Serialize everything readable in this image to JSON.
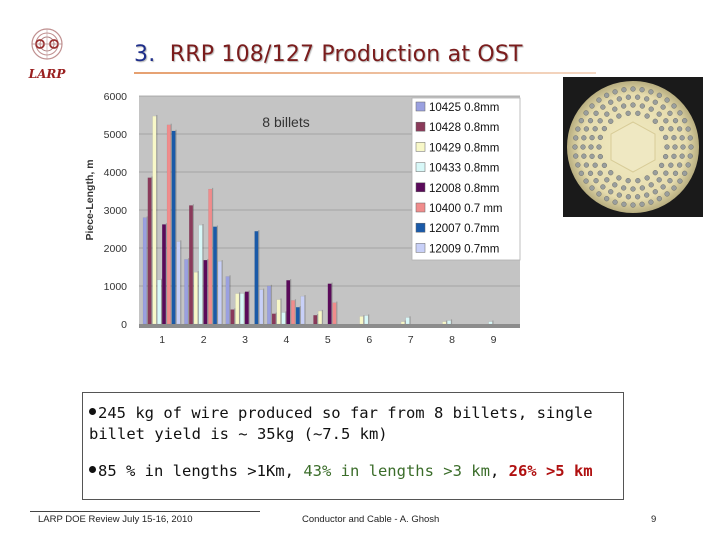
{
  "logo": {
    "text": "LARP"
  },
  "title": {
    "number": "3.",
    "text": "RRP 108/127 Production at OST"
  },
  "chart_data": {
    "type": "bar",
    "title": "",
    "annotation": "8 billets",
    "xlabel": "",
    "ylabel": "Piece-Length, m",
    "ylim": [
      0,
      6000
    ],
    "yticks": [
      0,
      1000,
      2000,
      3000,
      4000,
      5000,
      6000
    ],
    "categories": [
      "1",
      "2",
      "3",
      "4",
      "5",
      "6",
      "7",
      "8",
      "9"
    ],
    "series": [
      {
        "name": "10425 0.8mm",
        "color": "#9aa0e0",
        "values": [
          2800,
          1700,
          1250,
          1000,
          0,
          0,
          0,
          0,
          0
        ]
      },
      {
        "name": "10428 0.8mm",
        "color": "#8a3a5a",
        "values": [
          3850,
          3120,
          380,
          270,
          230,
          0,
          0,
          0,
          0
        ]
      },
      {
        "name": "10429 0.8mm",
        "color": "#f8f8c8",
        "values": [
          5470,
          1360,
          800,
          640,
          340,
          200,
          60,
          60,
          0
        ]
      },
      {
        "name": "10433 0.8mm",
        "color": "#d8f8f8",
        "values": [
          1160,
          2600,
          800,
          300,
          0,
          220,
          170,
          90,
          60
        ]
      },
      {
        "name": "12008 0.8mm",
        "color": "#5a0a5a",
        "values": [
          2620,
          1680,
          850,
          1150,
          1060,
          0,
          0,
          0,
          0
        ]
      },
      {
        "name": "10400 0.7 mm",
        "color": "#f08c8c",
        "values": [
          5240,
          3550,
          0,
          620,
          560,
          0,
          0,
          0,
          0
        ]
      },
      {
        "name": "12007 0.7mm",
        "color": "#1a5aa8",
        "values": [
          5080,
          2560,
          2440,
          440,
          0,
          0,
          0,
          0,
          0
        ]
      },
      {
        "name": "12009 0.7mm",
        "color": "#c8d0f8",
        "values": [
          2170,
          1650,
          900,
          730,
          0,
          0,
          0,
          0,
          0
        ]
      }
    ]
  },
  "bullets": {
    "b1": "245 kg of wire produced so far from 8 billets, single billet yield is ~ 35kg (~7.5 km)",
    "b2_a": "85 % in lengths >1Km, ",
    "b2_b": "43% in lengths >3 km",
    "b2_c": ", ",
    "b2_d": "26% >5 km"
  },
  "footer": {
    "left": "LARP DOE Review July 15-16, 2010",
    "center": "Conductor and Cable - A. Ghosh",
    "page": "9"
  }
}
